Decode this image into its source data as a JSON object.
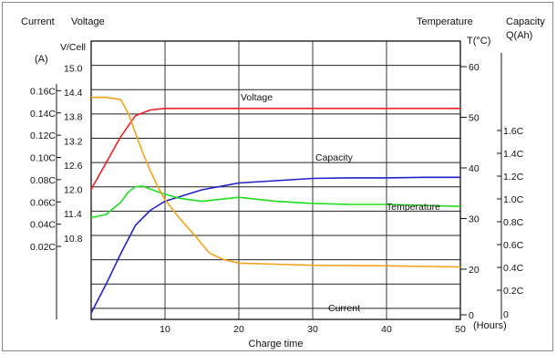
{
  "chart_data": {
    "type": "line",
    "xlabel": "Charge time",
    "x_unit": "(Hours)",
    "xlim": [
      0,
      50
    ],
    "x_ticks": [
      "10",
      "20",
      "30",
      "40",
      "50"
    ],
    "axes": {
      "current": {
        "title": "Current",
        "unit": "(A)",
        "ticks": [
          "0.02C",
          "0.04C",
          "0.06C",
          "0.08C",
          "0.10C",
          "0.12C",
          "0.14C",
          "0.16C"
        ]
      },
      "voltage": {
        "title": "Voltage",
        "unit": "V/Cell",
        "ticks": [
          "10.8",
          "11.4",
          "12.0",
          "12.6",
          "13.2",
          "13.8",
          "14.4",
          "15.0"
        ]
      },
      "temperature": {
        "title": "Temperature",
        "unit": "T(°C)",
        "ticks": [
          "0",
          "20",
          "30",
          "40",
          "50",
          "60"
        ]
      },
      "capacity": {
        "title": "Capacity",
        "unit": "Q(Ah)",
        "ticks": [
          "0.2C",
          "0.4C",
          "0.6C",
          "0.8C",
          "1.0C",
          "1.2C",
          "1.4C",
          "1.6C"
        ]
      }
    },
    "series": [
      {
        "name": "Voltage",
        "axis": "voltage",
        "color": "#ee2222",
        "x": [
          0,
          2,
          4,
          6,
          8,
          10,
          15,
          20,
          30,
          40,
          50
        ],
        "y": [
          12.0,
          12.65,
          13.3,
          13.82,
          13.96,
          14.0,
          14.0,
          14.0,
          14.0,
          14.0,
          14.0
        ]
      },
      {
        "name": "Capacity",
        "axis": "capacity",
        "color": "#2222cc",
        "x": [
          0,
          2,
          4,
          6,
          8,
          10,
          15,
          20,
          25,
          30,
          35,
          40,
          45,
          50
        ],
        "y": [
          0.0,
          0.25,
          0.52,
          0.77,
          0.9,
          0.98,
          1.08,
          1.14,
          1.16,
          1.18,
          1.185,
          1.185,
          1.19,
          1.19
        ]
      },
      {
        "name": "Temperature",
        "axis": "temperature",
        "color": "#22dd22",
        "x": [
          0,
          2,
          4,
          5,
          6,
          7,
          8,
          10,
          12,
          15,
          20,
          25,
          30,
          35,
          40,
          45,
          50
        ],
        "y": [
          30.2,
          30.8,
          33.2,
          35.2,
          36.3,
          36.4,
          35.8,
          34.8,
          34.0,
          33.4,
          34.2,
          33.4,
          33.0,
          32.8,
          32.8,
          32.6,
          32.4
        ]
      },
      {
        "name": "Current",
        "axis": "current",
        "color": "#f5a21a",
        "x": [
          0,
          2,
          3,
          4,
          5,
          6,
          7,
          8,
          9,
          10,
          12,
          14,
          16,
          18,
          20,
          25,
          30,
          40,
          50
        ],
        "y": [
          0.154,
          0.154,
          0.153,
          0.152,
          0.14,
          0.122,
          0.104,
          0.088,
          0.074,
          0.062,
          0.045,
          0.03,
          0.014,
          0.008,
          0.005,
          0.004,
          0.003,
          0.0025,
          0.0015
        ]
      }
    ],
    "annotations": [
      "Voltage",
      "Capacity",
      "Temperature",
      "Current"
    ],
    "grid": true
  }
}
